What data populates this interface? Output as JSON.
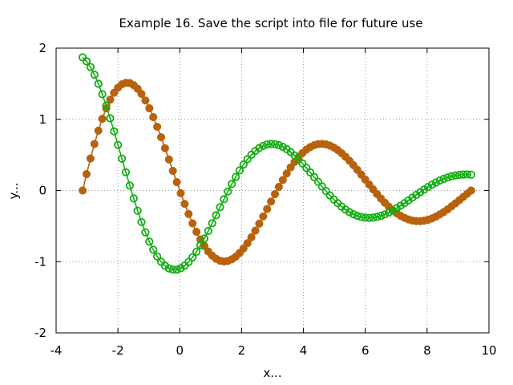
{
  "chart_data": {
    "type": "line",
    "title": "Example 16. Save the script into file for future use",
    "xlabel": "x...",
    "ylabel": "y...",
    "xlim": [
      -4,
      10
    ],
    "ylim": [
      -2,
      2
    ],
    "xticks": [
      -4,
      -2,
      0,
      2,
      4,
      6,
      8,
      10
    ],
    "yticks": [
      -2,
      -1,
      0,
      1,
      2
    ],
    "grid": true,
    "legend": "none",
    "series": [
      {
        "marker": "filled-circle",
        "color": "#b8620e",
        "x_range": [
          -3.1416,
          9.4248
        ],
        "points": 100,
        "values": "sampled from the plotted curve (amplitude ~1.6 at x=-2.4 decaying to ~0.2 at x=9.4)"
      },
      {
        "marker": "open-circle",
        "color": "#12ad12",
        "x_range": [
          -3.1416,
          9.4248
        ],
        "points": 100,
        "values": "sampled from the plotted curve (value ~1.87 at x=-3.14 decaying to ~0.15 at x=9.4)"
      }
    ]
  }
}
